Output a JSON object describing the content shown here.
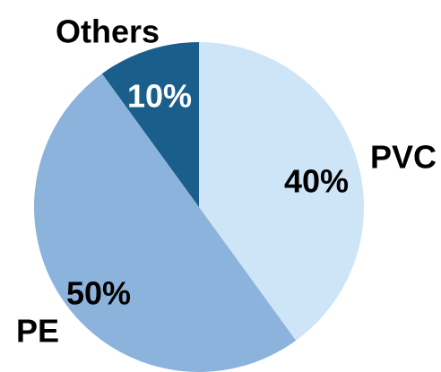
{
  "chart_data": {
    "type": "pie",
    "title": "",
    "start_angle_deg": 0,
    "direction": "clockwise",
    "slices": [
      {
        "name": "PVC",
        "value": 40,
        "value_label": "40%",
        "color": "#cde5f6"
      },
      {
        "name": "PE",
        "value": 50,
        "value_label": "50%",
        "color": "#8cb3dc"
      },
      {
        "name": "Others",
        "value": 10,
        "value_label": "10%",
        "color": "#1a5f8c"
      }
    ],
    "legend": "none",
    "labels": "category names outside slices, percentages inside slices"
  }
}
